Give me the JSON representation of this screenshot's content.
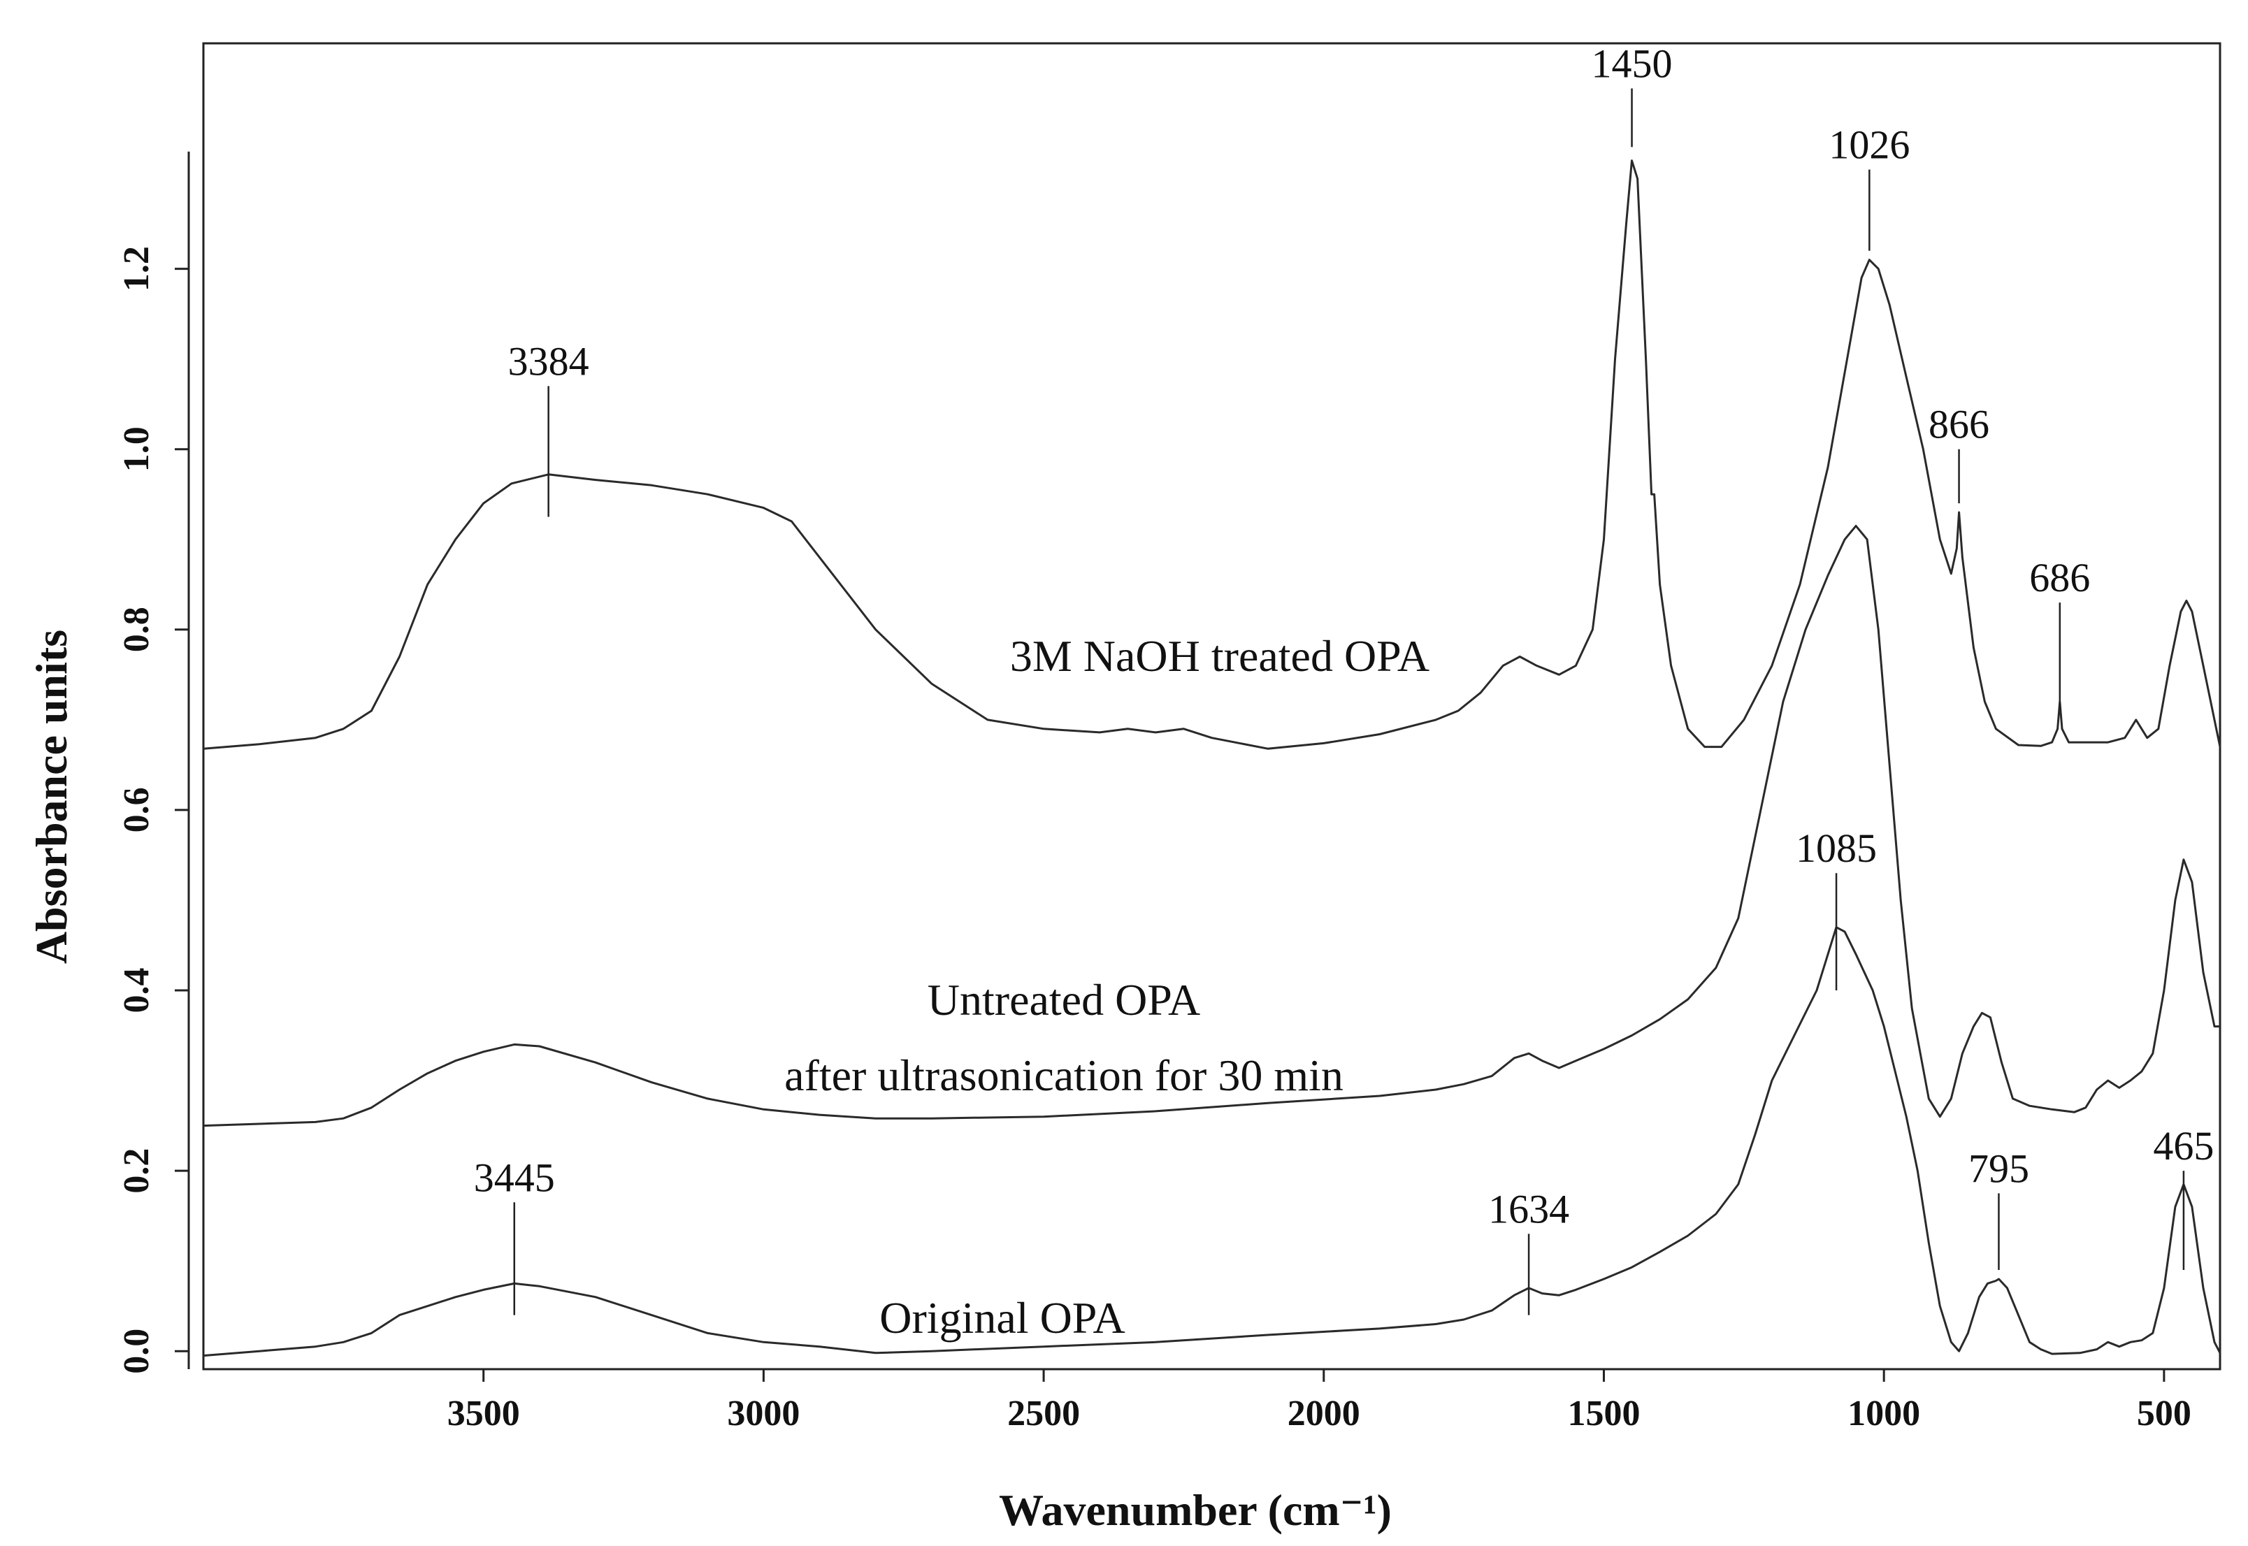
{
  "chart_data": {
    "type": "line",
    "title": "",
    "xlabel": "Wavenumber (cm⁻¹)",
    "ylabel": "Absorbance units",
    "xlim": [
      4000,
      400
    ],
    "ylim": [
      -0.02,
      1.45
    ],
    "x_reversed": true,
    "grid": false,
    "x_ticks": [
      3500,
      3000,
      2500,
      2000,
      1500,
      1000,
      500
    ],
    "y_ticks": [
      0.0,
      0.2,
      0.4,
      0.6,
      0.8,
      1.0,
      1.2
    ],
    "y_tick_labels": [
      "0.0",
      "0.2",
      "0.4",
      "0.6",
      "0.8",
      "1.0",
      "1.2"
    ],
    "series": [
      {
        "name": "3M NaOH treated OPA",
        "label": "3M NaOH treated OPA",
        "points": [
          [
            4000,
            0.668
          ],
          [
            3900,
            0.673
          ],
          [
            3800,
            0.68
          ],
          [
            3750,
            0.69
          ],
          [
            3700,
            0.71
          ],
          [
            3650,
            0.77
          ],
          [
            3600,
            0.85
          ],
          [
            3550,
            0.9
          ],
          [
            3500,
            0.94
          ],
          [
            3450,
            0.962
          ],
          [
            3384,
            0.972
          ],
          [
            3300,
            0.966
          ],
          [
            3200,
            0.96
          ],
          [
            3100,
            0.95
          ],
          [
            3000,
            0.935
          ],
          [
            2950,
            0.92
          ],
          [
            2900,
            0.88
          ],
          [
            2800,
            0.8
          ],
          [
            2700,
            0.74
          ],
          [
            2600,
            0.7
          ],
          [
            2500,
            0.69
          ],
          [
            2400,
            0.686
          ],
          [
            2350,
            0.69
          ],
          [
            2300,
            0.686
          ],
          [
            2250,
            0.69
          ],
          [
            2200,
            0.68
          ],
          [
            2100,
            0.668
          ],
          [
            2000,
            0.674
          ],
          [
            1900,
            0.684
          ],
          [
            1800,
            0.7
          ],
          [
            1760,
            0.71
          ],
          [
            1720,
            0.73
          ],
          [
            1680,
            0.76
          ],
          [
            1650,
            0.77
          ],
          [
            1620,
            0.76
          ],
          [
            1580,
            0.75
          ],
          [
            1550,
            0.76
          ],
          [
            1520,
            0.8
          ],
          [
            1500,
            0.9
          ],
          [
            1480,
            1.1
          ],
          [
            1460,
            1.25
          ],
          [
            1450,
            1.32
          ],
          [
            1440,
            1.3
          ],
          [
            1425,
            1.1
          ],
          [
            1415,
            0.95
          ],
          [
            1410,
            0.95
          ],
          [
            1400,
            0.85
          ],
          [
            1380,
            0.76
          ],
          [
            1350,
            0.69
          ],
          [
            1320,
            0.67
          ],
          [
            1290,
            0.67
          ],
          [
            1250,
            0.7
          ],
          [
            1200,
            0.76
          ],
          [
            1150,
            0.85
          ],
          [
            1100,
            0.98
          ],
          [
            1060,
            1.12
          ],
          [
            1040,
            1.19
          ],
          [
            1026,
            1.21
          ],
          [
            1010,
            1.2
          ],
          [
            990,
            1.16
          ],
          [
            960,
            1.08
          ],
          [
            930,
            1.0
          ],
          [
            900,
            0.9
          ],
          [
            880,
            0.862
          ],
          [
            870,
            0.89
          ],
          [
            866,
            0.93
          ],
          [
            860,
            0.88
          ],
          [
            840,
            0.78
          ],
          [
            820,
            0.72
          ],
          [
            800,
            0.69
          ],
          [
            760,
            0.672
          ],
          [
            720,
            0.671
          ],
          [
            700,
            0.675
          ],
          [
            690,
            0.69
          ],
          [
            686,
            0.72
          ],
          [
            682,
            0.69
          ],
          [
            670,
            0.675
          ],
          [
            600,
            0.675
          ],
          [
            570,
            0.68
          ],
          [
            550,
            0.7
          ],
          [
            530,
            0.68
          ],
          [
            510,
            0.69
          ],
          [
            490,
            0.76
          ],
          [
            470,
            0.82
          ],
          [
            460,
            0.832
          ],
          [
            450,
            0.82
          ],
          [
            430,
            0.76
          ],
          [
            410,
            0.7
          ],
          [
            400,
            0.67
          ]
        ]
      },
      {
        "name": "Untreated OPA after ultrasonication for 30 min",
        "label_line1": "Untreated OPA",
        "label_line2": "after ultrasonication for 30 min",
        "points": [
          [
            4000,
            0.25
          ],
          [
            3900,
            0.252
          ],
          [
            3800,
            0.254
          ],
          [
            3750,
            0.258
          ],
          [
            3700,
            0.27
          ],
          [
            3650,
            0.29
          ],
          [
            3600,
            0.308
          ],
          [
            3550,
            0.322
          ],
          [
            3500,
            0.332
          ],
          [
            3445,
            0.34
          ],
          [
            3400,
            0.338
          ],
          [
            3300,
            0.32
          ],
          [
            3200,
            0.298
          ],
          [
            3100,
            0.28
          ],
          [
            3000,
            0.268
          ],
          [
            2900,
            0.262
          ],
          [
            2800,
            0.258
          ],
          [
            2700,
            0.258
          ],
          [
            2500,
            0.26
          ],
          [
            2300,
            0.266
          ],
          [
            2100,
            0.275
          ],
          [
            1900,
            0.283
          ],
          [
            1800,
            0.29
          ],
          [
            1750,
            0.296
          ],
          [
            1700,
            0.305
          ],
          [
            1660,
            0.325
          ],
          [
            1634,
            0.33
          ],
          [
            1610,
            0.322
          ],
          [
            1580,
            0.314
          ],
          [
            1550,
            0.322
          ],
          [
            1500,
            0.335
          ],
          [
            1450,
            0.35
          ],
          [
            1400,
            0.368
          ],
          [
            1350,
            0.39
          ],
          [
            1300,
            0.425
          ],
          [
            1260,
            0.48
          ],
          [
            1220,
            0.6
          ],
          [
            1180,
            0.72
          ],
          [
            1140,
            0.8
          ],
          [
            1100,
            0.86
          ],
          [
            1070,
            0.9
          ],
          [
            1050,
            0.915
          ],
          [
            1030,
            0.9
          ],
          [
            1010,
            0.8
          ],
          [
            990,
            0.65
          ],
          [
            970,
            0.5
          ],
          [
            950,
            0.38
          ],
          [
            920,
            0.28
          ],
          [
            900,
            0.26
          ],
          [
            880,
            0.28
          ],
          [
            860,
            0.33
          ],
          [
            840,
            0.36
          ],
          [
            825,
            0.375
          ],
          [
            810,
            0.37
          ],
          [
            790,
            0.32
          ],
          [
            770,
            0.28
          ],
          [
            740,
            0.272
          ],
          [
            700,
            0.268
          ],
          [
            660,
            0.265
          ],
          [
            640,
            0.27
          ],
          [
            620,
            0.29
          ],
          [
            600,
            0.3
          ],
          [
            580,
            0.292
          ],
          [
            560,
            0.3
          ],
          [
            540,
            0.31
          ],
          [
            520,
            0.33
          ],
          [
            500,
            0.4
          ],
          [
            480,
            0.5
          ],
          [
            465,
            0.545
          ],
          [
            450,
            0.52
          ],
          [
            430,
            0.42
          ],
          [
            410,
            0.36
          ],
          [
            400,
            0.36
          ]
        ]
      },
      {
        "name": "Original OPA",
        "label": "Original OPA",
        "points": [
          [
            4000,
            -0.005
          ],
          [
            3900,
            0.0
          ],
          [
            3800,
            0.005
          ],
          [
            3750,
            0.01
          ],
          [
            3700,
            0.02
          ],
          [
            3650,
            0.04
          ],
          [
            3600,
            0.05
          ],
          [
            3550,
            0.06
          ],
          [
            3500,
            0.068
          ],
          [
            3445,
            0.075
          ],
          [
            3400,
            0.072
          ],
          [
            3300,
            0.06
          ],
          [
            3200,
            0.04
          ],
          [
            3100,
            0.02
          ],
          [
            3000,
            0.01
          ],
          [
            2900,
            0.005
          ],
          [
            2800,
            -0.002
          ],
          [
            2700,
            0.0
          ],
          [
            2500,
            0.005
          ],
          [
            2300,
            0.01
          ],
          [
            2100,
            0.018
          ],
          [
            1900,
            0.025
          ],
          [
            1800,
            0.03
          ],
          [
            1750,
            0.035
          ],
          [
            1700,
            0.045
          ],
          [
            1660,
            0.062
          ],
          [
            1634,
            0.07
          ],
          [
            1610,
            0.064
          ],
          [
            1580,
            0.062
          ],
          [
            1550,
            0.068
          ],
          [
            1500,
            0.08
          ],
          [
            1450,
            0.093
          ],
          [
            1400,
            0.11
          ],
          [
            1350,
            0.128
          ],
          [
            1300,
            0.152
          ],
          [
            1260,
            0.185
          ],
          [
            1230,
            0.24
          ],
          [
            1200,
            0.3
          ],
          [
            1160,
            0.35
          ],
          [
            1120,
            0.4
          ],
          [
            1100,
            0.44
          ],
          [
            1085,
            0.47
          ],
          [
            1070,
            0.465
          ],
          [
            1050,
            0.44
          ],
          [
            1020,
            0.4
          ],
          [
            1000,
            0.36
          ],
          [
            980,
            0.31
          ],
          [
            960,
            0.26
          ],
          [
            940,
            0.2
          ],
          [
            920,
            0.12
          ],
          [
            900,
            0.05
          ],
          [
            880,
            0.01
          ],
          [
            866,
            0.0
          ],
          [
            850,
            0.02
          ],
          [
            830,
            0.06
          ],
          [
            815,
            0.075
          ],
          [
            800,
            0.078
          ],
          [
            795,
            0.08
          ],
          [
            780,
            0.07
          ],
          [
            760,
            0.04
          ],
          [
            740,
            0.01
          ],
          [
            720,
            0.002
          ],
          [
            700,
            -0.003
          ],
          [
            650,
            -0.002
          ],
          [
            620,
            0.002
          ],
          [
            600,
            0.01
          ],
          [
            580,
            0.005
          ],
          [
            560,
            0.01
          ],
          [
            540,
            0.012
          ],
          [
            520,
            0.02
          ],
          [
            500,
            0.07
          ],
          [
            480,
            0.16
          ],
          [
            465,
            0.185
          ],
          [
            450,
            0.16
          ],
          [
            430,
            0.07
          ],
          [
            410,
            0.01
          ],
          [
            400,
            -0.002
          ]
        ]
      }
    ],
    "annotations": [
      {
        "label": "3384",
        "x": 3384,
        "line_from": 0.925,
        "line_to": 1.07
      },
      {
        "label": "1450",
        "x": 1450,
        "line_from": 1.335,
        "line_to": 1.4
      },
      {
        "label": "1026",
        "x": 1026,
        "line_from": 1.22,
        "line_to": 1.31
      },
      {
        "label": "866",
        "x": 866,
        "line_from": 0.94,
        "line_to": 1.0
      },
      {
        "label": "686",
        "x": 686,
        "line_from": 0.71,
        "line_to": 0.83
      },
      {
        "label": "1085",
        "x": 1085,
        "line_from": 0.4,
        "line_to": 0.53
      },
      {
        "label": "3445",
        "x": 3445,
        "line_from": 0.04,
        "line_to": 0.165
      },
      {
        "label": "1634",
        "x": 1634,
        "line_from": 0.04,
        "line_to": 0.13
      },
      {
        "label": "795",
        "x": 795,
        "line_from": 0.09,
        "line_to": 0.175
      },
      {
        "label": "465",
        "x": 465,
        "line_from": 0.09,
        "line_to": 0.2
      }
    ]
  }
}
